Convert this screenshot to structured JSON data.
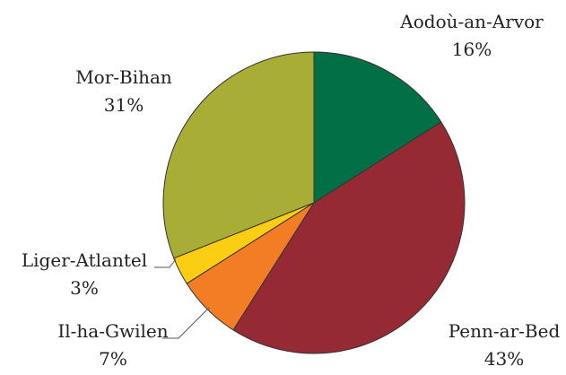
{
  "chart_data": {
    "type": "pie",
    "title": "",
    "legend": "none",
    "start_angle_deg": 0,
    "direction": "clockwise",
    "slices": [
      {
        "name": "Aodoù-an-Arvor",
        "value": 16,
        "label": "16%",
        "color": "#036f47"
      },
      {
        "name": "Penn-ar-Bed",
        "value": 43,
        "label": "43%",
        "color": "#952a34"
      },
      {
        "name": "Il-ha-Gwilen",
        "value": 7,
        "label": "7%",
        "color": "#f27d25"
      },
      {
        "name": "Liger-Atlantel",
        "value": 3,
        "label": "3%",
        "color": "#fcce13"
      },
      {
        "name": "Mor-Bihan",
        "value": 31,
        "label": "31%",
        "color": "#a8ad36"
      }
    ]
  }
}
